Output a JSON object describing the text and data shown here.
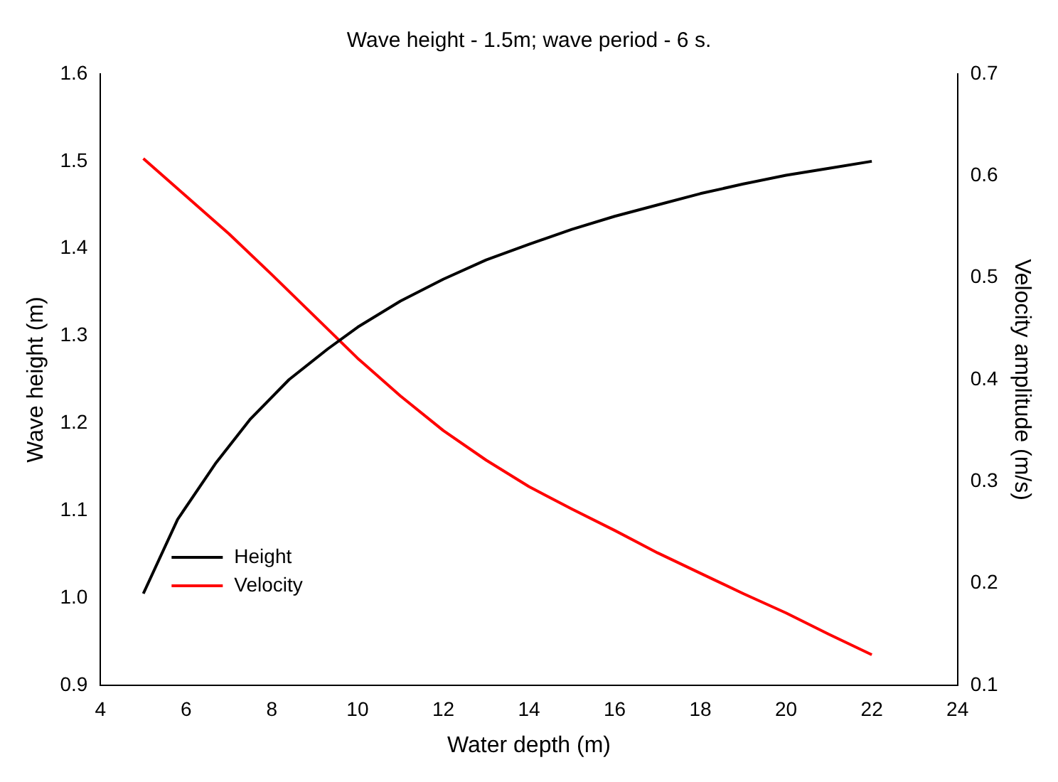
{
  "chart_data": {
    "type": "line",
    "title": "Wave height - 1.5m; wave period - 6 s.",
    "xlabel": "Water depth (m)",
    "ylabel": "Wave height (m)",
    "y2label": "Velocity amplitude (m/s)",
    "xlim": [
      4,
      24
    ],
    "xticks": [
      4,
      6,
      8,
      10,
      12,
      14,
      16,
      18,
      20,
      22,
      24
    ],
    "ylim": [
      0.9,
      1.6
    ],
    "yticks": [
      {
        "value": 0.9,
        "label": "0.9"
      },
      {
        "value": 1.0,
        "label": "1.0"
      },
      {
        "value": 1.1,
        "label": "1.1"
      },
      {
        "value": 1.2,
        "label": "1.2"
      },
      {
        "value": 1.3,
        "label": "1.3"
      },
      {
        "value": 1.4,
        "label": "1.4"
      },
      {
        "value": 1.5,
        "label": "1.5"
      },
      {
        "value": 1.6,
        "label": "1.6"
      }
    ],
    "y2lim": [
      0.1,
      0.7
    ],
    "y2ticks": [
      0.1,
      0.2,
      0.3,
      0.4,
      0.5,
      0.6,
      0.7
    ],
    "grid": false,
    "legend": "bottom left",
    "marker": "none",
    "line_style": "solid",
    "series": [
      {
        "name": "Height",
        "color": "#000000",
        "x": [
          5,
          5.8,
          6.7,
          7.5,
          8.4,
          9.3,
          10,
          11,
          12,
          13,
          14,
          15,
          16,
          17,
          18,
          19,
          20,
          21,
          22
        ],
        "values": [
          1.005,
          1.09,
          1.155,
          1.205,
          1.25,
          1.285,
          1.31,
          1.34,
          1.365,
          1.387,
          1.405,
          1.422,
          1.437,
          1.45,
          1.463,
          1.474,
          1.484,
          1.492,
          1.5
        ]
      },
      {
        "name": "Velocity",
        "color": "#ff0000",
        "axis": "y2",
        "x": [
          5,
          6,
          7,
          8,
          9,
          10,
          11,
          12,
          13,
          14,
          15,
          16,
          17,
          18,
          19,
          20,
          21,
          22
        ],
        "values": [
          0.617,
          0.58,
          0.543,
          0.503,
          0.462,
          0.421,
          0.384,
          0.35,
          0.321,
          0.295,
          0.273,
          0.252,
          0.23,
          0.21,
          0.19,
          0.171,
          0.15,
          0.13
        ]
      }
    ]
  }
}
